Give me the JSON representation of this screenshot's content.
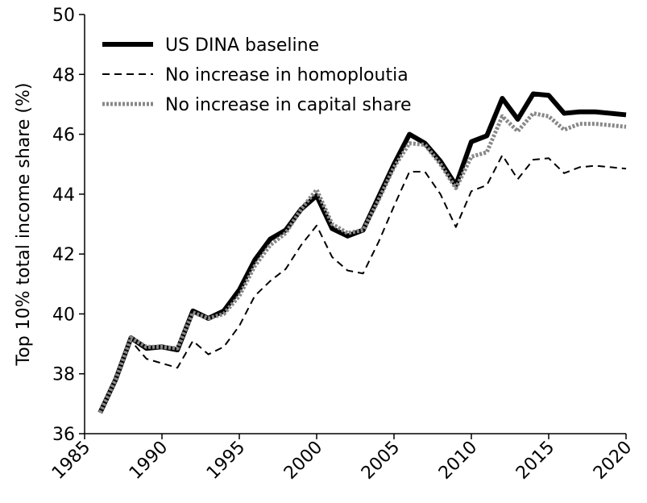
{
  "chart_data": {
    "type": "line",
    "y_label": "Top 10% total income share (%)",
    "x": [
      1986,
      1987,
      1988,
      1989,
      1990,
      1991,
      1992,
      1993,
      1994,
      1995,
      1996,
      1997,
      1998,
      1999,
      2000,
      2001,
      2002,
      2003,
      2004,
      2005,
      2006,
      2007,
      2008,
      2009,
      2010,
      2011,
      2012,
      2013,
      2014,
      2015,
      2016,
      2017,
      2018,
      2019,
      2020
    ],
    "series": [
      {
        "name": "US DINA baseline",
        "color": "#000000",
        "style": "solid",
        "values": [
          36.7,
          37.8,
          39.2,
          38.85,
          38.9,
          38.8,
          40.1,
          39.85,
          40.1,
          40.8,
          41.8,
          42.5,
          42.8,
          43.5,
          43.95,
          42.85,
          42.6,
          42.8,
          43.9,
          45.0,
          46.0,
          45.7,
          45.1,
          44.3,
          45.75,
          45.95,
          47.2,
          46.5,
          47.35,
          47.3,
          46.7,
          46.75,
          46.75,
          46.7,
          46.65
        ]
      },
      {
        "name": "No increase in homoploutia",
        "color": "#000000",
        "style": "dashed",
        "values": [
          36.7,
          37.8,
          39.1,
          38.5,
          38.35,
          38.2,
          39.1,
          38.65,
          38.9,
          39.6,
          40.6,
          41.1,
          41.5,
          42.3,
          42.95,
          41.9,
          41.45,
          41.35,
          42.4,
          43.6,
          44.75,
          44.75,
          44.0,
          42.9,
          44.1,
          44.3,
          45.3,
          44.5,
          45.15,
          45.2,
          44.7,
          44.9,
          44.95,
          44.9,
          44.85
        ]
      },
      {
        "name": "No increase in capital share",
        "color": "#888888",
        "style": "dotted",
        "values": [
          36.7,
          37.8,
          39.2,
          38.9,
          38.9,
          38.85,
          40.05,
          39.85,
          40.0,
          40.6,
          41.6,
          42.3,
          42.7,
          43.5,
          44.15,
          43.0,
          42.7,
          42.8,
          43.8,
          44.9,
          45.7,
          45.65,
          45.0,
          44.2,
          45.25,
          45.4,
          46.6,
          46.1,
          46.7,
          46.6,
          46.15,
          46.35,
          46.35,
          46.3,
          46.25
        ]
      }
    ],
    "xlim": [
      1985,
      2020
    ],
    "xticks": [
      1985,
      1990,
      1995,
      2000,
      2005,
      2010,
      2015,
      2020
    ],
    "ylim": [
      36,
      50
    ],
    "yticks": [
      36,
      38,
      40,
      42,
      44,
      46,
      48,
      50
    ],
    "grid": false,
    "legend": "upper left"
  }
}
